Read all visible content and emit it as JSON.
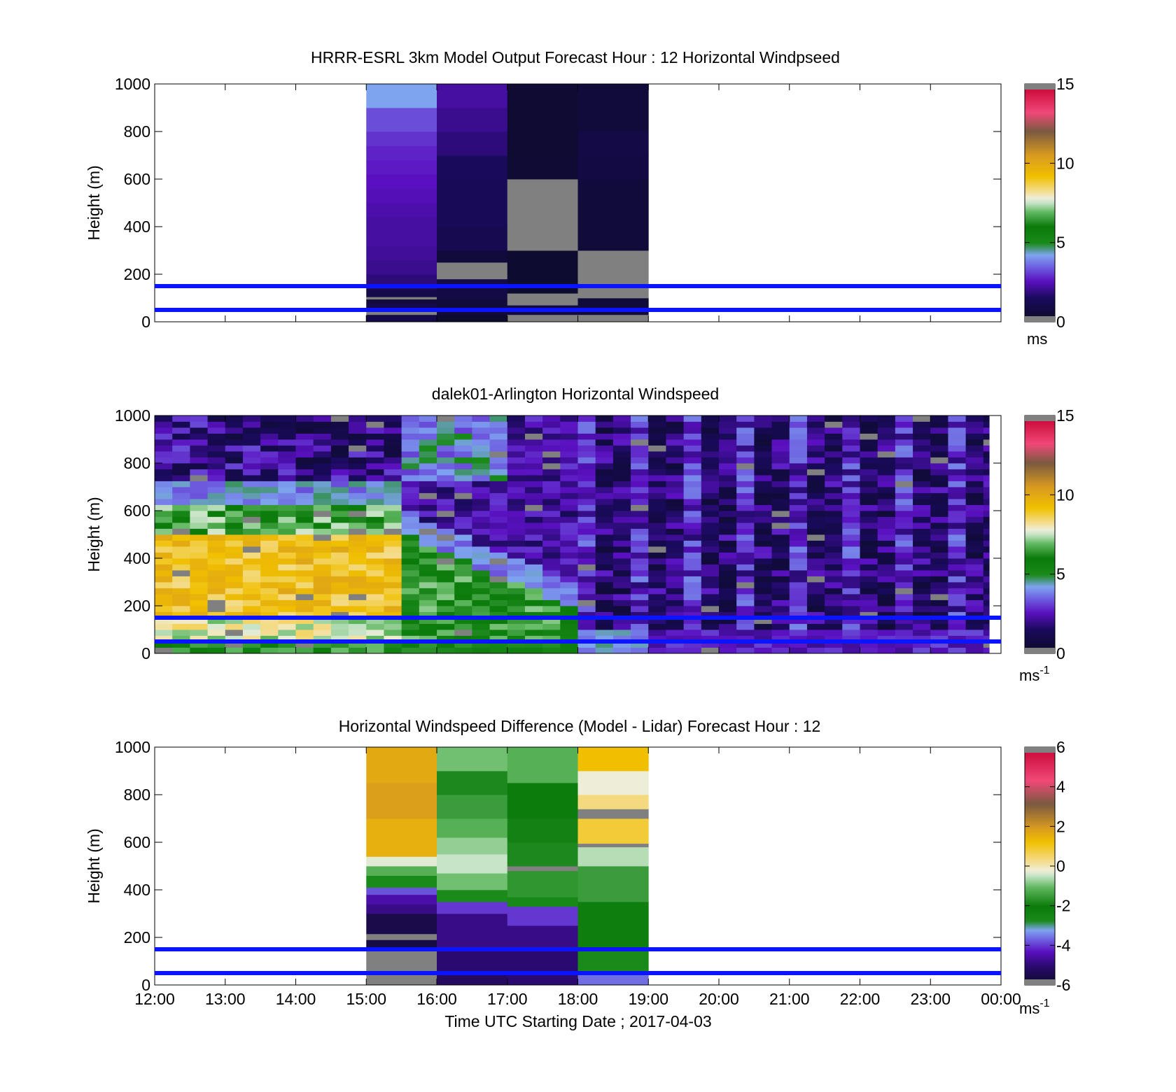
{
  "chart_data": [
    {
      "type": "heatmap",
      "title": "HRRR-ESRL 3km Model Output   Forecast Hour : 12 Horizontal Windpseed",
      "ylabel": "Height (m)",
      "ylim": [
        0,
        1000
      ],
      "yticks": [
        "0",
        "200",
        "400",
        "600",
        "800",
        "1000"
      ],
      "xlim": [
        "12:00",
        "00:00"
      ],
      "colorbar": {
        "min": 0,
        "max": 15,
        "ticks": [
          "0",
          "5",
          "10",
          "15"
        ],
        "unit": "ms"
      },
      "reference_lines_m": [
        50,
        150
      ],
      "columns": [
        {
          "start": "15:00",
          "end": "16:00",
          "cells": [
            [
              0,
              30,
              1.0
            ],
            [
              30,
              60,
              -1
            ],
            [
              60,
              80,
              1.0
            ],
            [
              80,
              95,
              0.5
            ],
            [
              95,
              105,
              -1
            ],
            [
              105,
              140,
              1.0
            ],
            [
              140,
              200,
              1.8
            ],
            [
              200,
              260,
              2.0
            ],
            [
              260,
              320,
              2.1
            ],
            [
              320,
              380,
              2.2
            ],
            [
              380,
              440,
              2.2
            ],
            [
              440,
              500,
              2.3
            ],
            [
              500,
              560,
              2.4
            ],
            [
              560,
              620,
              2.5
            ],
            [
              620,
              680,
              2.6
            ],
            [
              680,
              740,
              2.7
            ],
            [
              740,
              800,
              2.9
            ],
            [
              800,
              900,
              3.2
            ],
            [
              900,
              1000,
              4.2
            ]
          ]
        },
        {
          "start": "16:00",
          "end": "17:00",
          "cells": [
            [
              0,
              30,
              0.3
            ],
            [
              30,
              100,
              0.6
            ],
            [
              100,
              180,
              0.9
            ],
            [
              180,
              250,
              -1
            ],
            [
              250,
              300,
              0.6
            ],
            [
              300,
              400,
              1.2
            ],
            [
              400,
              500,
              1.4
            ],
            [
              500,
              600,
              1.4
            ],
            [
              600,
              700,
              1.5
            ],
            [
              700,
              800,
              1.8
            ],
            [
              800,
              900,
              2.0
            ],
            [
              900,
              1000,
              2.2
            ]
          ]
        },
        {
          "start": "17:00",
          "end": "18:00",
          "cells": [
            [
              0,
              30,
              -1
            ],
            [
              30,
              70,
              0.8
            ],
            [
              70,
              120,
              -1
            ],
            [
              120,
              300,
              0.3
            ],
            [
              300,
              600,
              -1
            ],
            [
              600,
              700,
              0.4
            ],
            [
              700,
              800,
              0.35
            ],
            [
              800,
              1000,
              0.35
            ]
          ]
        },
        {
          "start": "18:00",
          "end": "19:00",
          "cells": [
            [
              0,
              30,
              -1
            ],
            [
              30,
              100,
              0.5
            ],
            [
              100,
              300,
              -1
            ],
            [
              300,
              500,
              0.5
            ],
            [
              500,
              600,
              0.6
            ],
            [
              600,
              700,
              0.8
            ],
            [
              700,
              800,
              0.9
            ],
            [
              800,
              1000,
              0.6
            ]
          ]
        }
      ]
    },
    {
      "type": "heatmap",
      "title": "dalek01-Arlington  Horizontal Windspeed",
      "ylabel": "Height (m)",
      "ylim": [
        0,
        1000
      ],
      "yticks": [
        "0",
        "200",
        "400",
        "600",
        "800",
        "1000"
      ],
      "xlim": [
        "12:00",
        "00:00"
      ],
      "colorbar": {
        "min": 0,
        "max": 15,
        "ticks": [
          "0",
          "5",
          "10",
          "15"
        ],
        "unit": "ms",
        "unit_exp": "-1"
      },
      "reference_lines_m": [
        50,
        150
      ],
      "data_end": "23:50",
      "profile_interval_min": 15,
      "vertical_bins": 40
    },
    {
      "type": "heatmap",
      "title": "Horizontal Windspeed Difference (Model - Lidar) Forecast Hour : 12",
      "ylabel": "Height (m)",
      "xlabel": "Time UTC  Starting Date ; 2017-04-03",
      "ylim": [
        0,
        1000
      ],
      "yticks": [
        "0",
        "200",
        "400",
        "600",
        "800",
        "1000"
      ],
      "xticks": [
        "12:00",
        "13:00",
        "14:00",
        "15:00",
        "16:00",
        "17:00",
        "18:00",
        "19:00",
        "20:00",
        "21:00",
        "22:00",
        "23:00",
        "00:00"
      ],
      "xlim": [
        "12:00",
        "00:00"
      ],
      "colorbar": {
        "min": -6,
        "max": 6,
        "ticks": [
          "-6",
          "-4",
          "-2",
          "0",
          "2",
          "4",
          "6"
        ],
        "unit": "ms",
        "unit_exp": "-1"
      },
      "reference_lines_m": [
        50,
        150
      ],
      "columns": [
        {
          "start": "15:00",
          "end": "16:00",
          "cells": [
            [
              0,
              150,
              -9
            ],
            [
              150,
              190,
              -5.6
            ],
            [
              190,
              215,
              -9
            ],
            [
              215,
              300,
              -5.5
            ],
            [
              300,
              340,
              -4.8
            ],
            [
              340,
              380,
              -4.5
            ],
            [
              380,
              410,
              -3.8
            ],
            [
              410,
              460,
              -2.8
            ],
            [
              460,
              500,
              -1.2
            ],
            [
              500,
              540,
              -0.3
            ],
            [
              540,
              700,
              1.5
            ],
            [
              700,
              850,
              1.8
            ],
            [
              850,
              1000,
              1.6
            ]
          ]
        },
        {
          "start": "16:00",
          "end": "17:00",
          "cells": [
            [
              0,
              50,
              -5.2
            ],
            [
              50,
              150,
              -5.0
            ],
            [
              150,
              300,
              -4.8
            ],
            [
              300,
              350,
              -4.0
            ],
            [
              350,
              400,
              -2.8
            ],
            [
              400,
              470,
              -1.0
            ],
            [
              470,
              550,
              -0.5
            ],
            [
              550,
              620,
              -0.8
            ],
            [
              620,
              700,
              -1.2
            ],
            [
              700,
              800,
              -1.5
            ],
            [
              800,
              900,
              -1.8
            ],
            [
              900,
              1000,
              -1.0
            ]
          ]
        },
        {
          "start": "17:00",
          "end": "18:00",
          "cells": [
            [
              0,
              150,
              -5.0
            ],
            [
              150,
              250,
              -4.8
            ],
            [
              250,
              330,
              -4.0
            ],
            [
              330,
              370,
              -2.7
            ],
            [
              370,
              480,
              -1.6
            ],
            [
              480,
              500,
              -9
            ],
            [
              500,
              600,
              -1.8
            ],
            [
              600,
              700,
              -1.9
            ],
            [
              700,
              850,
              -2.1
            ],
            [
              850,
              1000,
              -1.2
            ]
          ]
        },
        {
          "start": "18:00",
          "end": "19:00",
          "cells": [
            [
              0,
              50,
              -3.6
            ],
            [
              50,
              150,
              -2.8
            ],
            [
              150,
              350,
              -2.2
            ],
            [
              350,
              500,
              -1.5
            ],
            [
              500,
              580,
              -0.6
            ],
            [
              580,
              595,
              -9
            ],
            [
              595,
              700,
              0.8
            ],
            [
              700,
              740,
              -9
            ],
            [
              740,
              800,
              0.3
            ],
            [
              800,
              900,
              -0.2
            ],
            [
              900,
              1000,
              1.2
            ]
          ]
        }
      ]
    }
  ]
}
